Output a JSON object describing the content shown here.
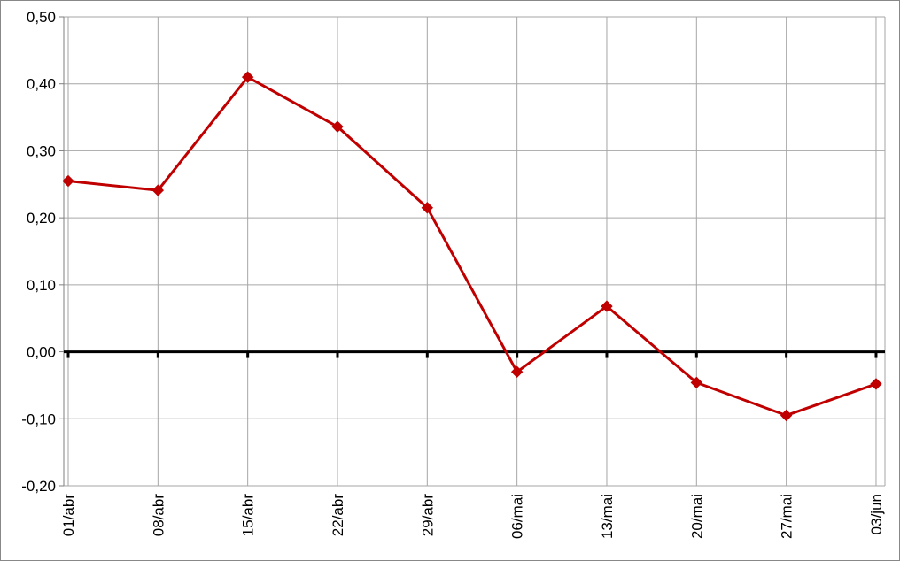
{
  "chart_data": {
    "type": "line",
    "title": "",
    "xlabel": "",
    "ylabel": "",
    "categories": [
      "01/abr",
      "08/abr",
      "15/abr",
      "22/abr",
      "29/abr",
      "06/mai",
      "13/mai",
      "20/mai",
      "27/mai",
      "03/jun"
    ],
    "series": [
      {
        "values": [
          0.255,
          0.241,
          0.41,
          0.336,
          0.215,
          -0.03,
          0.068,
          -0.046,
          -0.095,
          -0.048
        ],
        "color": "#C00000",
        "marker": "diamond"
      }
    ],
    "ylim": [
      -0.2,
      0.5
    ],
    "y_ticks": [
      -0.2,
      -0.1,
      0.0,
      0.1,
      0.2,
      0.3,
      0.4,
      0.5
    ],
    "y_tick_labels": [
      "-0,20",
      "-0,10",
      "0,00",
      "0,10",
      "0,20",
      "0,30",
      "0,40",
      "0,50"
    ],
    "grid": true,
    "legend": "none",
    "colors": {
      "grid": "#A6A6A6",
      "axis": "#000000",
      "zero_line": "#000000",
      "series": "#C00000"
    }
  }
}
